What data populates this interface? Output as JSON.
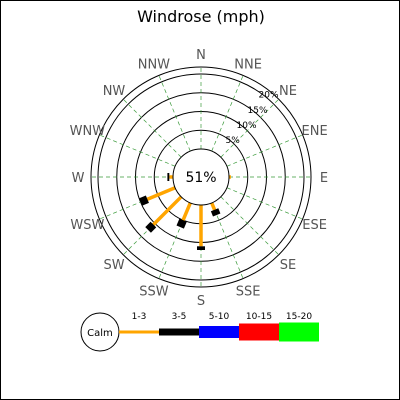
{
  "chart_data": {
    "type": "windrose",
    "title": "Windrose (mph)",
    "directions": [
      "N",
      "NNE",
      "NE",
      "ENE",
      "E",
      "ESE",
      "SE",
      "SSE",
      "S",
      "SSW",
      "SW",
      "WSW",
      "W",
      "WNW",
      "NW",
      "NNW"
    ],
    "calm": {
      "label": "Calm",
      "percent": "51%",
      "value": 51
    },
    "rings": [
      {
        "value": 5,
        "label": "5%"
      },
      {
        "value": 10,
        "label": "10%"
      },
      {
        "value": 15,
        "label": "15%"
      },
      {
        "value": 20,
        "label": "20%"
      }
    ],
    "speed_bins": [
      {
        "label": "1-3",
        "color": "#FFA500"
      },
      {
        "label": "3-5",
        "color": "#000000"
      },
      {
        "label": "5-10",
        "color": "#0000FF"
      },
      {
        "label": "10-15",
        "color": "#FF0000"
      },
      {
        "label": "15-20",
        "color": "#00FF00"
      }
    ],
    "series": [
      {
        "bin": "1-3",
        "values": [
          0,
          0,
          0,
          0,
          0.5,
          0,
          0,
          2.0,
          11.0,
          5.0,
          10.5,
          8.0,
          1.0,
          0,
          0,
          0
        ]
      },
      {
        "bin": "3-5",
        "values": [
          0,
          0,
          0,
          0,
          0,
          0,
          0,
          1.5,
          1.0,
          2.0,
          2.0,
          2.0,
          0.5,
          0,
          0,
          0
        ]
      }
    ],
    "grid": true
  }
}
